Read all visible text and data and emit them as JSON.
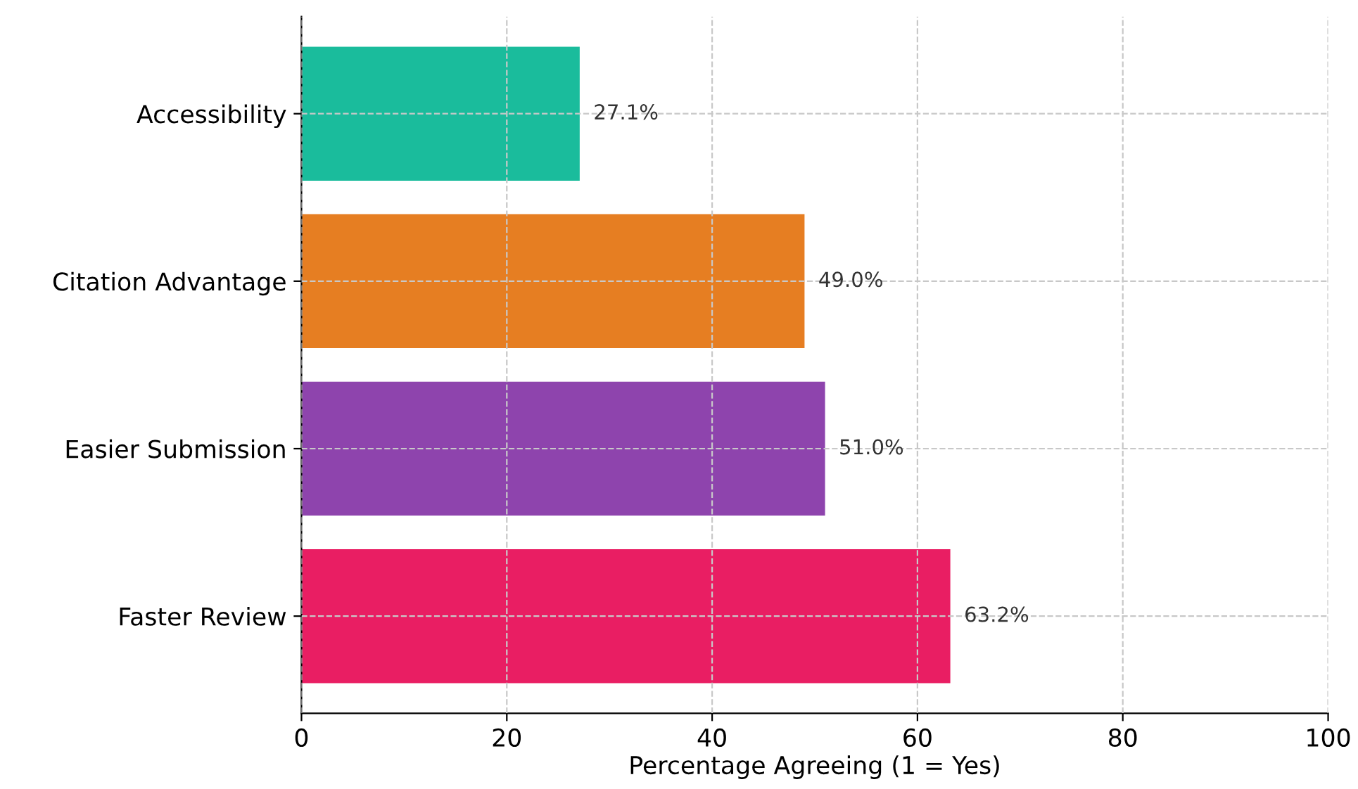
{
  "chart_data": {
    "type": "bar",
    "orientation": "horizontal",
    "xlabel": "Percentage Agreeing (1 = Yes)",
    "categories": [
      "Accessibility",
      "Citation Advantage",
      "Easier Submission",
      "Faster Review"
    ],
    "values": [
      27.1,
      49.0,
      51.0,
      63.2
    ],
    "colors": [
      "#1abc9c",
      "#e67e22",
      "#8e44ad",
      "#e91e63"
    ],
    "value_labels": [
      "27.1%",
      "49.0%",
      "51.0%",
      "63.2%"
    ],
    "xlim": [
      0,
      100
    ],
    "xticks": [
      0,
      20,
      40,
      60,
      80,
      100
    ],
    "grid": true
  }
}
